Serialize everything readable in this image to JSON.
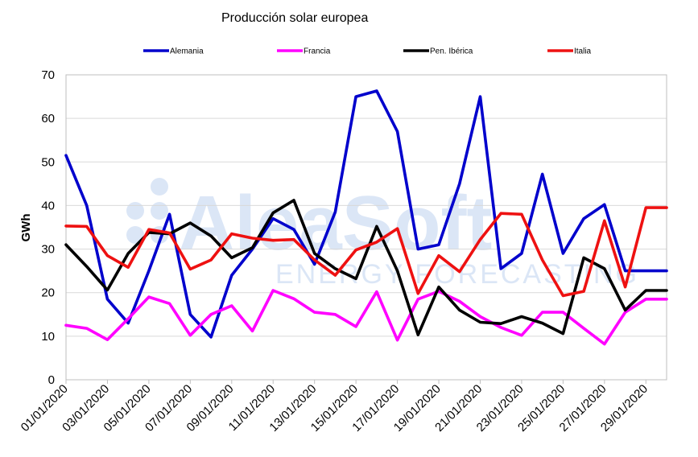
{
  "colors": {
    "background": "#ffffff",
    "grid": "#d9d9d9",
    "axis": "#bfbfbf",
    "watermark": "#dbe6f6"
  },
  "watermark": {
    "brand": "AleaSoft",
    "tagline": "ENERGY FORECASTING"
  },
  "chart_data": {
    "type": "line",
    "title": "Producción solar europea",
    "xlabel": "",
    "ylabel": "GWh",
    "ylim": [
      0,
      70
    ],
    "yticks": [
      0,
      10,
      20,
      30,
      40,
      50,
      60,
      70
    ],
    "grid": true,
    "legend_position": "top",
    "x": [
      "01/01/2020",
      "02/01/2020",
      "03/01/2020",
      "04/01/2020",
      "05/01/2020",
      "06/01/2020",
      "07/01/2020",
      "08/01/2020",
      "09/01/2020",
      "10/01/2020",
      "11/01/2020",
      "12/01/2020",
      "13/01/2020",
      "14/01/2020",
      "15/01/2020",
      "16/01/2020",
      "17/01/2020",
      "18/01/2020",
      "19/01/2020",
      "20/01/2020",
      "21/01/2020",
      "22/01/2020",
      "23/01/2020",
      "24/01/2020",
      "25/01/2020",
      "26/01/2020",
      "27/01/2020",
      "28/01/2020",
      "29/01/2020",
      "30/01/2020"
    ],
    "xtick_labels": [
      "01/01/2020",
      "03/01/2020",
      "05/01/2020",
      "07/01/2020",
      "09/01/2020",
      "11/01/2020",
      "13/01/2020",
      "15/01/2020",
      "17/01/2020",
      "19/01/2020",
      "21/01/2020",
      "23/01/2020",
      "25/01/2020",
      "27/01/2020",
      "29/01/2020"
    ],
    "series": [
      {
        "name": "Alemania",
        "color": "#0000cc",
        "values": [
          51.5,
          40,
          18.5,
          13,
          25,
          38,
          15,
          9.8,
          24,
          30,
          37,
          34.5,
          26.5,
          38.5,
          65,
          66.3,
          57,
          30,
          31,
          45,
          65,
          25.5,
          29,
          47.2,
          29,
          37,
          40.2,
          25,
          25,
          25
        ]
      },
      {
        "name": "Francia",
        "color": "#ff00ff",
        "values": [
          12.5,
          11.8,
          9.2,
          14,
          19,
          17.5,
          10.2,
          15,
          17,
          11.2,
          20.5,
          18.6,
          15.5,
          15,
          12.2,
          20.2,
          9.1,
          18.5,
          20.3,
          18,
          14.5,
          12,
          10.2,
          15.5,
          15.5,
          11.8,
          8.2,
          15.5,
          18.5,
          18.5
        ]
      },
      {
        "name": "Pen. Ibérica",
        "color": "#000000",
        "values": [
          31,
          26,
          20.6,
          29,
          33.8,
          33.5,
          36,
          33,
          28,
          30.3,
          38.3,
          41.2,
          29,
          25.5,
          23.2,
          35.2,
          25,
          10.3,
          21.3,
          16,
          13.2,
          12.9,
          14.5,
          13,
          10.6,
          28,
          25.5,
          16,
          20.5,
          20.5
        ]
      },
      {
        "name": "Italia",
        "color": "#ee1111",
        "values": [
          35.3,
          35.2,
          28.5,
          25.8,
          34.5,
          33.7,
          25.4,
          27.5,
          33.5,
          32.5,
          32,
          32.2,
          27.5,
          24,
          29.8,
          31.6,
          34.7,
          19.8,
          28.5,
          24.8,
          32.2,
          38.2,
          38,
          27.5,
          19.3,
          20.3,
          36.5,
          21.3,
          39.5,
          39.5
        ]
      }
    ]
  }
}
